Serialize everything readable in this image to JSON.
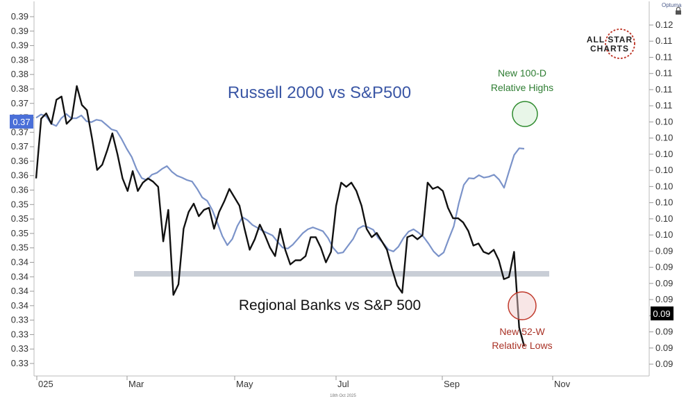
{
  "chart_data": {
    "type": "line",
    "title": "",
    "xlabel": "",
    "ylabel": "",
    "x_ticks": [
      "025",
      "Mar",
      "May",
      "Jul",
      "Sep",
      "Nov"
    ],
    "left_axis_ticks": [
      "0.39",
      "0.39",
      "0.39",
      "0.38",
      "0.38",
      "0.38",
      "0.37",
      "0.37",
      "0.37",
      "0.37",
      "0.36",
      "0.36",
      "0.36",
      "0.35",
      "0.35",
      "0.35",
      "0.35",
      "0.34",
      "0.34",
      "0.34",
      "0.34",
      "0.33",
      "0.33",
      "0.33",
      "0.33"
    ],
    "right_axis_ticks": [
      "0.12",
      "0.11",
      "0.11",
      "0.11",
      "0.11",
      "0.11",
      "0.10",
      "0.10",
      "0.10",
      "0.10",
      "0.10",
      "0.10",
      "0.10",
      "0.10",
      "0.09",
      "0.09",
      "0.09",
      "0.09",
      "0.09",
      "0.09",
      "0.09",
      "0.09"
    ],
    "left_last_value": "0.37",
    "right_last_value": "0.09",
    "left_highlight_color": "#4a6fd8",
    "right_highlight_color": "#000000",
    "series": [
      {
        "name": "Russell 2000 vs S&P500",
        "axis": "left",
        "color": "#7b93c9",
        "values": [
          0.3769,
          0.3776,
          0.3772,
          0.3757,
          0.3752,
          0.3768,
          0.3777,
          0.3768,
          0.3768,
          0.3774,
          0.3762,
          0.376,
          0.3765,
          0.3763,
          0.3754,
          0.3745,
          0.3742,
          0.3725,
          0.3705,
          0.3688,
          0.3662,
          0.3644,
          0.364,
          0.3651,
          0.3655,
          0.3663,
          0.3669,
          0.3657,
          0.3649,
          0.3645,
          0.364,
          0.3637,
          0.3622,
          0.3604,
          0.3597,
          0.3578,
          0.3552,
          0.3524,
          0.3505,
          0.3518,
          0.3545,
          0.3563,
          0.3557,
          0.3547,
          0.3541,
          0.3535,
          0.353,
          0.3525,
          0.3512,
          0.35,
          0.3498,
          0.3506,
          0.3518,
          0.353,
          0.3538,
          0.3542,
          0.3538,
          0.3534,
          0.352,
          0.35,
          0.3488,
          0.349,
          0.3504,
          0.3518,
          0.3539,
          0.3545,
          0.3542,
          0.3537,
          0.352,
          0.3509,
          0.3496,
          0.3492,
          0.3502,
          0.352,
          0.3533,
          0.3538,
          0.3531,
          0.3522,
          0.3508,
          0.3492,
          0.3482,
          0.349,
          0.3518,
          0.3544,
          0.3592,
          0.363,
          0.3644,
          0.3643,
          0.365,
          0.3645,
          0.3647,
          0.3651,
          0.3641,
          0.3624,
          0.3659,
          0.3692,
          0.3706,
          0.3705
        ]
      },
      {
        "name": "Regional Banks vs S&P 500",
        "axis": "right",
        "color": "#111111",
        "values": [
          0.1028,
          0.1085,
          0.109,
          0.108,
          0.1103,
          0.1106,
          0.108,
          0.1085,
          0.1116,
          0.1098,
          0.1093,
          0.1066,
          0.1036,
          0.1041,
          0.1055,
          0.1071,
          0.1051,
          0.1028,
          0.1016,
          0.1035,
          0.1016,
          0.1024,
          0.1028,
          0.1025,
          0.102,
          0.0968,
          0.0998,
          0.0917,
          0.0927,
          0.098,
          0.0996,
          0.1004,
          0.0992,
          0.0998,
          0.1,
          0.098,
          0.0996,
          0.1006,
          0.1018,
          0.101,
          0.1002,
          0.098,
          0.096,
          0.097,
          0.0984,
          0.0974,
          0.0962,
          0.0954,
          0.098,
          0.096,
          0.0946,
          0.095,
          0.095,
          0.0954,
          0.0972,
          0.0972,
          0.0962,
          0.0948,
          0.0958,
          0.1002,
          0.1024,
          0.102,
          0.1024,
          0.1016,
          0.1002,
          0.098,
          0.0972,
          0.0976,
          0.0968,
          0.096,
          0.0942,
          0.0926,
          0.0919,
          0.0972,
          0.0974,
          0.097,
          0.0974,
          0.1024,
          0.1018,
          0.102,
          0.1016,
          0.1,
          0.099,
          0.099,
          0.0986,
          0.0978,
          0.0964,
          0.0966,
          0.0958,
          0.0956,
          0.096,
          0.095,
          0.0932,
          0.0934,
          0.0958,
          0.0886,
          0.0868
        ]
      }
    ],
    "annotations": {
      "russell_label": "Russell 2000 vs S&P500",
      "banks_label": "Regional Banks vs S&P 500",
      "high_label_line1": "New 100-D",
      "high_label_line2": "Relative Highs",
      "low_label_line1": "New 52-W",
      "low_label_line2": "Relative Lows",
      "high_circle_color": "#2e8b2e",
      "low_circle_color": "#c0392b"
    },
    "logo": {
      "line1": "ALL STAR",
      "line2": "CHARTS",
      "star_color": "#c0392b"
    },
    "footer_date": "18th Oct 2025",
    "watermark": "Optuma"
  }
}
